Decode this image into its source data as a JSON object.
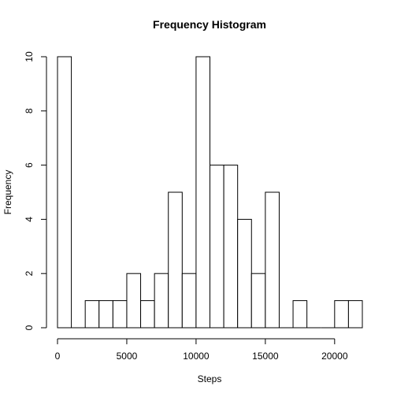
{
  "chart_data": {
    "type": "bar",
    "title": "Frequency Histogram",
    "xlabel": "Steps",
    "ylabel": "Frequency",
    "bin_width": 1000,
    "bin_edges": [
      0,
      1000,
      2000,
      3000,
      4000,
      5000,
      6000,
      7000,
      8000,
      9000,
      10000,
      11000,
      12000,
      13000,
      14000,
      15000,
      16000,
      17000,
      18000,
      19000,
      20000,
      21000,
      22000
    ],
    "values": [
      10,
      0,
      1,
      1,
      1,
      2,
      1,
      2,
      5,
      2,
      10,
      6,
      6,
      4,
      2,
      5,
      0,
      1,
      0,
      0,
      1,
      1
    ],
    "xlim": [
      0,
      22000
    ],
    "ylim": [
      0,
      10
    ],
    "x_ticks": [
      0,
      5000,
      10000,
      15000,
      20000
    ],
    "x_tick_labels": [
      "0",
      "5000",
      "10000",
      "15000",
      "20000"
    ],
    "y_ticks": [
      0,
      2,
      4,
      6,
      8,
      10
    ],
    "y_tick_labels": [
      "0",
      "2",
      "4",
      "6",
      "8",
      "10"
    ],
    "grid": false,
    "bar_fill": "#ffffff",
    "bar_stroke": "#000000"
  }
}
